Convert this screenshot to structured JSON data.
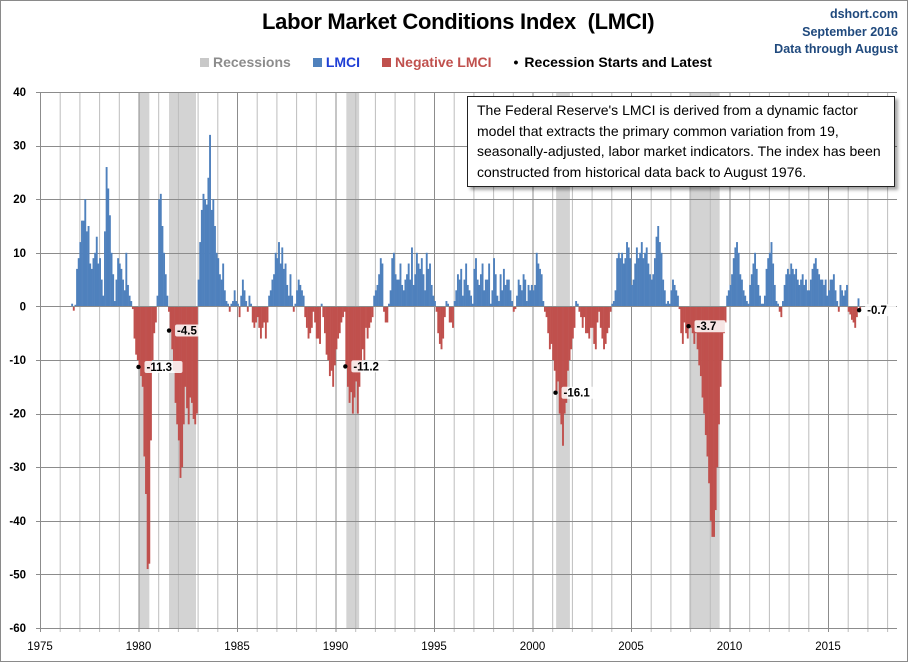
{
  "chart_data": {
    "type": "bar",
    "title": "Labor Market Conditions Index  (LMCI)",
    "source_lines": [
      "dshort.com",
      "September 2016",
      "Data through August"
    ],
    "legend": [
      {
        "label": "Recessions",
        "color": "#c8c8c8",
        "text_color": "#8c8c8c"
      },
      {
        "label": "LMCI",
        "color": "#4f81bd",
        "text_color": "#1f3fd6"
      },
      {
        "label": "Negative LMCI",
        "color": "#c0504d",
        "text_color": "#c0504d"
      },
      {
        "label": "Recession Starts and Latest",
        "color": "#000000",
        "text_color": "#000000"
      }
    ],
    "annotation": "The Federal Reserve's LMCI is derived from a dynamic factor model that extracts the primary common variation from 19, seasonally-adjusted, labor market indicators. The index has been constructed from historical data back to August 1976.",
    "xlim": [
      1975,
      2018.5
    ],
    "ylim": [
      -60,
      40
    ],
    "x_ticks": [
      "1975",
      "1980",
      "1985",
      "1990",
      "1995",
      "2000",
      "2005",
      "2010",
      "2015"
    ],
    "y_ticks": [
      "40",
      "30",
      "20",
      "10",
      "0",
      "-10",
      "-20",
      "-30",
      "-40",
      "-50",
      "-60"
    ],
    "grid": true,
    "recessions": [
      [
        1980.0,
        1980.55
      ],
      [
        1981.55,
        1982.92
      ],
      [
        1990.55,
        1991.2
      ],
      [
        2001.2,
        2001.9
      ],
      [
        2007.95,
        2009.5
      ]
    ],
    "point_labels": [
      {
        "x": 1980.0,
        "y": -11.3,
        "label": "-11.3"
      },
      {
        "x": 1981.55,
        "y": -4.5,
        "label": "-4.5"
      },
      {
        "x": 1990.5,
        "y": -11.2,
        "label": "-11.2"
      },
      {
        "x": 2001.17,
        "y": -16.1,
        "label": "-16.1"
      },
      {
        "x": 2007.92,
        "y": -3.7,
        "label": "-3.7"
      },
      {
        "x": 2016.58,
        "y": -0.7,
        "label": "-0.7"
      }
    ],
    "start": "1976-08",
    "monthly_values": {
      "1976": [
        0.5,
        -0.8,
        0.3,
        7,
        9
      ],
      "1977": [
        12,
        16,
        16,
        20,
        14,
        15,
        8,
        7,
        9,
        10,
        13,
        8
      ],
      "1978": [
        9,
        5,
        2,
        14,
        26,
        22,
        17,
        10,
        6,
        1,
        5,
        9
      ],
      "1979": [
        8,
        7,
        5,
        3,
        10,
        4,
        2,
        1,
        -0.5,
        -6,
        -9,
        -10
      ],
      "1980": [
        -11.3,
        -13,
        -15,
        -28,
        -35,
        -49,
        -48,
        -25,
        -10,
        -5,
        -3,
        2
      ],
      "1981": [
        20,
        21,
        15,
        10,
        6,
        2,
        -1,
        -4.5,
        -8,
        -12,
        -18,
        -22
      ],
      "1982": [
        -25,
        -32,
        -30,
        -22,
        -15,
        -19,
        -22,
        -17,
        -18,
        -21,
        -22,
        -20
      ],
      "1983": [
        5,
        12,
        18,
        21,
        20,
        19,
        24,
        32,
        18,
        20,
        15,
        10
      ],
      "1984": [
        9,
        6,
        5,
        8,
        3,
        1,
        0.5,
        -1,
        0.5,
        1,
        3,
        1
      ],
      "1985": [
        0.5,
        -2,
        2,
        5,
        3,
        1,
        -1,
        2,
        0.5,
        -3,
        -4,
        -3
      ],
      "1986": [
        -2,
        -4,
        -6,
        -4,
        -3,
        -6,
        -3,
        2,
        3,
        5,
        6,
        10
      ],
      "1987": [
        9,
        12,
        8,
        11,
        7,
        8,
        4,
        2,
        6,
        2,
        -1,
        0.5
      ],
      "1988": [
        3,
        5,
        4,
        3,
        2,
        -2,
        -4,
        -6,
        -5,
        -4,
        -1,
        -3
      ],
      "1989": [
        -6,
        -6,
        -7,
        0.5,
        -2,
        -5,
        -9,
        -10,
        -13,
        -12,
        -15,
        -11
      ],
      "1990": [
        -8,
        -6,
        -5,
        -3,
        -2,
        -1,
        -11.2,
        -15,
        -18,
        -16,
        -20,
        -17
      ],
      "1991": [
        -14,
        -20,
        -15,
        -12,
        -8,
        -10,
        -4,
        -6,
        -4,
        -3,
        -2,
        2
      ],
      "1992": [
        3,
        4,
        6,
        9,
        8,
        -1,
        -3,
        -3,
        0.5,
        3,
        9,
        10
      ],
      "1993": [
        6,
        5,
        5,
        8,
        4,
        3,
        5,
        6,
        8,
        5,
        11,
        4
      ],
      "1994": [
        6,
        10,
        8,
        7,
        9,
        6,
        3,
        10,
        7,
        8,
        4,
        2
      ],
      "1995": [
        1,
        -1,
        -5,
        -7,
        -8,
        -6,
        -2,
        1,
        0.5,
        -3,
        -3,
        -4
      ],
      "1996": [
        1,
        3,
        6,
        5,
        7,
        2,
        5,
        8,
        4,
        3,
        2,
        0.5
      ],
      "1997": [
        7,
        9,
        5,
        4,
        6,
        8,
        3,
        5,
        5,
        8,
        0.5,
        3
      ],
      "1998": [
        9,
        6,
        2,
        1,
        6,
        3,
        7,
        4,
        5,
        5,
        3,
        1
      ],
      "1999": [
        -1,
        -0.5,
        2,
        5,
        4,
        3,
        6,
        5,
        1,
        4,
        3,
        4
      ],
      "2000": [
        3,
        4,
        10,
        8,
        7,
        6,
        1,
        -1,
        -2,
        -5,
        -8,
        -7
      ],
      "2001": [
        -10,
        -12,
        -16.1,
        -14,
        -20,
        -22,
        -26,
        -20,
        -18,
        -12,
        -10,
        -8
      ],
      "2002": [
        -6,
        -4,
        1,
        0.5,
        -1,
        -2,
        -4,
        -2,
        -5,
        -5,
        -6,
        -4
      ],
      "2003": [
        -4,
        -7,
        -8,
        -3,
        -1,
        -4,
        -6,
        -8,
        -7,
        -5,
        -4,
        -1
      ],
      "2004": [
        0.5,
        1,
        3,
        9,
        10,
        9,
        10,
        8,
        9,
        12,
        11,
        9
      ],
      "2005": [
        4,
        5,
        8,
        11,
        9,
        10,
        12,
        9,
        10,
        11,
        8,
        6
      ],
      "2006": [
        5,
        6,
        9,
        13,
        15,
        12,
        10,
        5,
        3,
        0.5,
        1,
        0.5
      ],
      "2007": [
        3,
        5,
        4,
        3,
        2,
        -0.5,
        -5,
        -7,
        -3,
        -5,
        -6,
        -3.7
      ],
      "2008": [
        -4,
        -5,
        -7,
        -5,
        -8,
        -11,
        -13,
        -17,
        -20,
        -24,
        -28,
        -33
      ],
      "2009": [
        -40,
        -43,
        -43,
        -38,
        -30,
        -22,
        -15,
        -10,
        -5,
        -3,
        2,
        3
      ],
      "2010": [
        4,
        6,
        9,
        11,
        12,
        10,
        6,
        5,
        3,
        2,
        1,
        0.5
      ],
      "2011": [
        4,
        6,
        8,
        10,
        7,
        4,
        2,
        0.5,
        0.5,
        2,
        7,
        9
      ],
      "2012": [
        10,
        12,
        8,
        4,
        1,
        0.5,
        -1,
        -2,
        1,
        4,
        6,
        7
      ],
      "2013": [
        6,
        8,
        7,
        6,
        7,
        5,
        4,
        5,
        6,
        4,
        5,
        3
      ],
      "2014": [
        3,
        5,
        7,
        8,
        9,
        7,
        6,
        5,
        5,
        4,
        5,
        2
      ],
      "2015": [
        3,
        5,
        5,
        6,
        3,
        1,
        -1,
        4,
        3,
        2,
        3,
        4
      ],
      "2016": [
        -1,
        -1.5,
        -2.5,
        -3,
        -4,
        -2,
        1.5,
        -0.7
      ]
    }
  }
}
